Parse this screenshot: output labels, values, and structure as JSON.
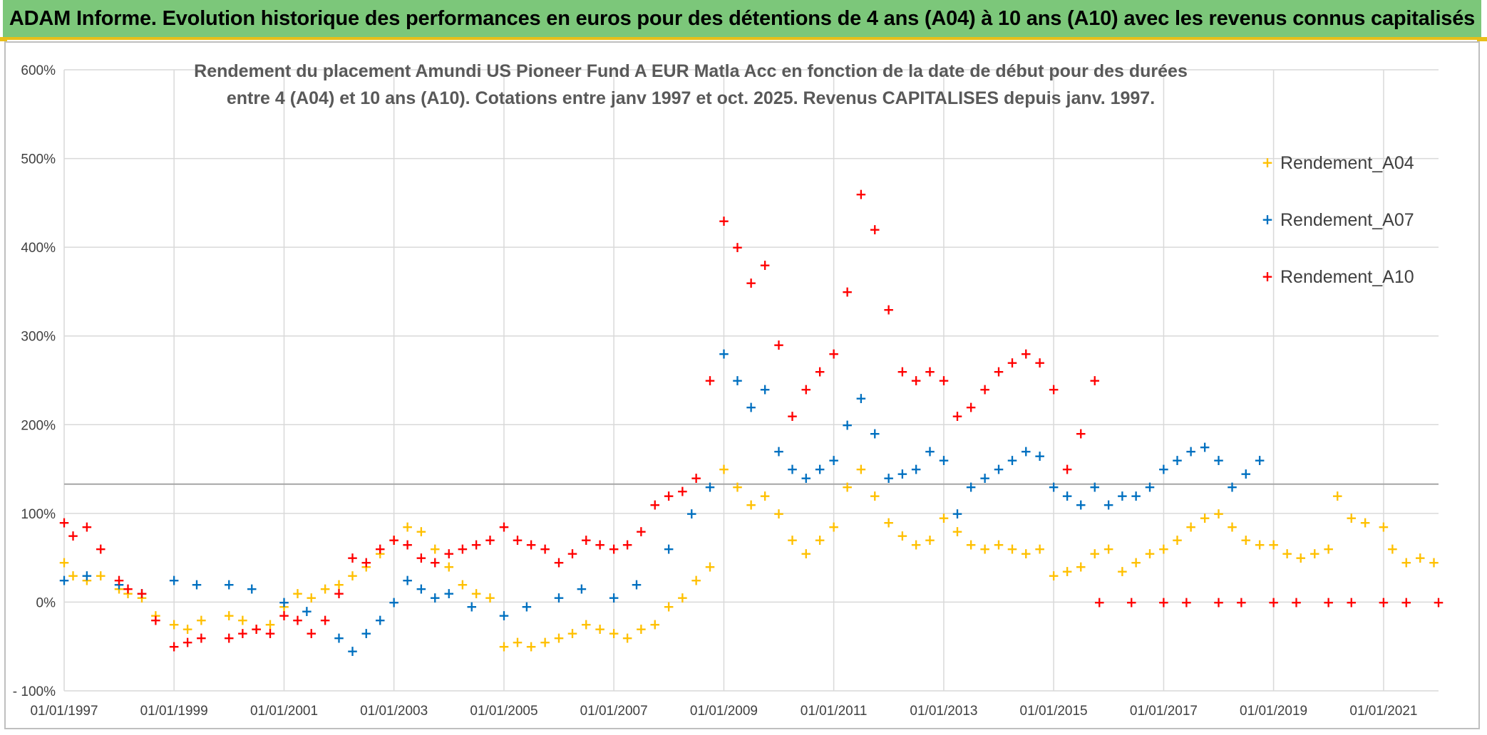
{
  "header": {
    "title": "ADAM Informe. Evolution historique des performances en euros pour des détentions de 4 ans (A04) à 10 ans (A10) avec les revenus connus capitalisés"
  },
  "colors": {
    "header_bg": "#7cc77a",
    "header_border": "#e8bf1a",
    "A04": "#ffc000",
    "A07": "#0070c0",
    "A10": "#ff0000",
    "grid": "#d9d9d9",
    "ref_line": "#a6a6a6"
  },
  "chart_data": {
    "type": "scatter",
    "title_lines": [
      "Rendement du placement Amundi US Pioneer Fund A EUR Matla Acc en fonction de la date de début pour des durées",
      "entre 4 (A04) et 10 ans (A10). Cotations entre janv 1997 et oct. 2025. Revenus CAPITALISES depuis janv. 1997."
    ],
    "x_axis": {
      "type": "date",
      "range": [
        "1997-01-01",
        "2022-01-01"
      ],
      "tick_labels": [
        "01/01/1997",
        "01/01/1999",
        "01/01/2001",
        "01/01/2003",
        "01/01/2005",
        "01/01/2007",
        "01/01/2009",
        "01/01/2011",
        "01/01/2013",
        "01/01/2015",
        "01/01/2017",
        "01/01/2019",
        "01/01/2021"
      ]
    },
    "y_axis": {
      "unit": "%",
      "range": [
        -100,
        600
      ],
      "tick_labels": [
        "- 100%",
        "0%",
        "100%",
        "200%",
        "300%",
        "400%",
        "500%",
        "600%"
      ]
    },
    "grid": true,
    "reference_line_value": 133,
    "legend_position": "top-right",
    "marker": "+",
    "series": [
      {
        "name": "Rendement_A04",
        "color": "#ffc000",
        "points": [
          [
            "1997-01-01",
            45
          ],
          [
            "1997-03-01",
            30
          ],
          [
            "1997-06-01",
            25
          ],
          [
            "1997-09-01",
            30
          ],
          [
            "1998-01-01",
            15
          ],
          [
            "1998-03-01",
            10
          ],
          [
            "1998-06-01",
            5
          ],
          [
            "1998-09-01",
            -15
          ],
          [
            "1999-01-01",
            -25
          ],
          [
            "1999-04-01",
            -30
          ],
          [
            "1999-07-01",
            -20
          ],
          [
            "2000-01-01",
            -15
          ],
          [
            "2000-04-01",
            -20
          ],
          [
            "2000-07-01",
            -30
          ],
          [
            "2000-10-01",
            -25
          ],
          [
            "2001-01-01",
            -5
          ],
          [
            "2001-04-01",
            10
          ],
          [
            "2001-07-01",
            5
          ],
          [
            "2001-10-01",
            15
          ],
          [
            "2002-01-01",
            20
          ],
          [
            "2002-04-01",
            30
          ],
          [
            "2002-07-01",
            40
          ],
          [
            "2002-10-01",
            55
          ],
          [
            "2003-01-01",
            70
          ],
          [
            "2003-04-01",
            85
          ],
          [
            "2003-07-01",
            80
          ],
          [
            "2003-10-01",
            60
          ],
          [
            "2004-01-01",
            40
          ],
          [
            "2004-04-01",
            20
          ],
          [
            "2004-07-01",
            10
          ],
          [
            "2004-10-01",
            5
          ],
          [
            "2005-01-01",
            -50
          ],
          [
            "2005-04-01",
            -45
          ],
          [
            "2005-07-01",
            -50
          ],
          [
            "2005-10-01",
            -45
          ],
          [
            "2006-01-01",
            -40
          ],
          [
            "2006-04-01",
            -35
          ],
          [
            "2006-07-01",
            -25
          ],
          [
            "2006-10-01",
            -30
          ],
          [
            "2007-01-01",
            -35
          ],
          [
            "2007-04-01",
            -40
          ],
          [
            "2007-07-01",
            -30
          ],
          [
            "2007-10-01",
            -25
          ],
          [
            "2008-01-01",
            -5
          ],
          [
            "2008-04-01",
            5
          ],
          [
            "2008-07-01",
            25
          ],
          [
            "2008-10-01",
            40
          ],
          [
            "2009-01-01",
            150
          ],
          [
            "2009-04-01",
            130
          ],
          [
            "2009-07-01",
            110
          ],
          [
            "2009-10-01",
            120
          ],
          [
            "2010-01-01",
            100
          ],
          [
            "2010-04-01",
            70
          ],
          [
            "2010-07-01",
            55
          ],
          [
            "2010-10-01",
            70
          ],
          [
            "2011-01-01",
            85
          ],
          [
            "2011-04-01",
            130
          ],
          [
            "2011-07-01",
            150
          ],
          [
            "2011-10-01",
            120
          ],
          [
            "2012-01-01",
            90
          ],
          [
            "2012-04-01",
            75
          ],
          [
            "2012-07-01",
            65
          ],
          [
            "2012-10-01",
            70
          ],
          [
            "2013-01-01",
            95
          ],
          [
            "2013-04-01",
            80
          ],
          [
            "2013-07-01",
            65
          ],
          [
            "2013-10-01",
            60
          ],
          [
            "2014-01-01",
            65
          ],
          [
            "2014-04-01",
            60
          ],
          [
            "2014-07-01",
            55
          ],
          [
            "2014-10-01",
            60
          ],
          [
            "2015-01-01",
            30
          ],
          [
            "2015-04-01",
            35
          ],
          [
            "2015-07-01",
            40
          ],
          [
            "2015-10-01",
            55
          ],
          [
            "2016-01-01",
            60
          ],
          [
            "2016-04-01",
            35
          ],
          [
            "2016-07-01",
            45
          ],
          [
            "2016-10-01",
            55
          ],
          [
            "2017-01-01",
            60
          ],
          [
            "2017-04-01",
            70
          ],
          [
            "2017-07-01",
            85
          ],
          [
            "2017-10-01",
            95
          ],
          [
            "2018-01-01",
            100
          ],
          [
            "2018-04-01",
            85
          ],
          [
            "2018-07-01",
            70
          ],
          [
            "2018-10-01",
            65
          ],
          [
            "2019-01-01",
            65
          ],
          [
            "2019-04-01",
            55
          ],
          [
            "2019-07-01",
            50
          ],
          [
            "2019-10-01",
            55
          ],
          [
            "2020-01-01",
            60
          ],
          [
            "2020-03-01",
            120
          ],
          [
            "2020-06-01",
            95
          ],
          [
            "2020-09-01",
            90
          ],
          [
            "2021-01-01",
            85
          ],
          [
            "2021-03-01",
            60
          ],
          [
            "2021-06-01",
            45
          ],
          [
            "2021-09-01",
            50
          ],
          [
            "2021-12-01",
            45
          ]
        ]
      },
      {
        "name": "Rendement_A07",
        "color": "#0070c0",
        "points": [
          [
            "1997-01-01",
            25
          ],
          [
            "1997-06-01",
            30
          ],
          [
            "1998-01-01",
            20
          ],
          [
            "1998-06-01",
            10
          ],
          [
            "1999-01-01",
            25
          ],
          [
            "1999-06-01",
            20
          ],
          [
            "2000-01-01",
            20
          ],
          [
            "2000-06-01",
            15
          ],
          [
            "2001-01-01",
            0
          ],
          [
            "2001-06-01",
            -10
          ],
          [
            "2002-01-01",
            -40
          ],
          [
            "2002-04-01",
            -55
          ],
          [
            "2002-07-01",
            -35
          ],
          [
            "2002-10-01",
            -20
          ],
          [
            "2003-01-01",
            0
          ],
          [
            "2003-04-01",
            25
          ],
          [
            "2003-07-01",
            15
          ],
          [
            "2003-10-01",
            5
          ],
          [
            "2004-01-01",
            10
          ],
          [
            "2004-06-01",
            -5
          ],
          [
            "2005-01-01",
            -15
          ],
          [
            "2005-06-01",
            -5
          ],
          [
            "2006-01-01",
            5
          ],
          [
            "2006-06-01",
            15
          ],
          [
            "2007-01-01",
            5
          ],
          [
            "2007-06-01",
            20
          ],
          [
            "2008-01-01",
            60
          ],
          [
            "2008-06-01",
            100
          ],
          [
            "2008-10-01",
            130
          ],
          [
            "2009-01-01",
            280
          ],
          [
            "2009-04-01",
            250
          ],
          [
            "2009-07-01",
            220
          ],
          [
            "2009-10-01",
            240
          ],
          [
            "2010-01-01",
            170
          ],
          [
            "2010-04-01",
            150
          ],
          [
            "2010-07-01",
            140
          ],
          [
            "2010-10-01",
            150
          ],
          [
            "2011-01-01",
            160
          ],
          [
            "2011-04-01",
            200
          ],
          [
            "2011-07-01",
            230
          ],
          [
            "2011-10-01",
            190
          ],
          [
            "2012-01-01",
            140
          ],
          [
            "2012-04-01",
            145
          ],
          [
            "2012-07-01",
            150
          ],
          [
            "2012-10-01",
            170
          ],
          [
            "2013-01-01",
            160
          ],
          [
            "2013-04-01",
            100
          ],
          [
            "2013-07-01",
            130
          ],
          [
            "2013-10-01",
            140
          ],
          [
            "2014-01-01",
            150
          ],
          [
            "2014-04-01",
            160
          ],
          [
            "2014-07-01",
            170
          ],
          [
            "2014-10-01",
            165
          ],
          [
            "2015-01-01",
            130
          ],
          [
            "2015-04-01",
            120
          ],
          [
            "2015-07-01",
            110
          ],
          [
            "2015-10-01",
            130
          ],
          [
            "2016-01-01",
            110
          ],
          [
            "2016-04-01",
            120
          ],
          [
            "2016-07-01",
            120
          ],
          [
            "2016-10-01",
            130
          ],
          [
            "2017-01-01",
            150
          ],
          [
            "2017-04-01",
            160
          ],
          [
            "2017-07-01",
            170
          ],
          [
            "2017-10-01",
            175
          ],
          [
            "2018-01-01",
            160
          ],
          [
            "2018-04-01",
            130
          ],
          [
            "2018-07-01",
            145
          ],
          [
            "2018-10-01",
            160
          ]
        ]
      },
      {
        "name": "Rendement_A10",
        "color": "#ff0000",
        "points": [
          [
            "1997-01-01",
            90
          ],
          [
            "1997-03-01",
            75
          ],
          [
            "1997-06-01",
            85
          ],
          [
            "1997-09-01",
            60
          ],
          [
            "1998-01-01",
            25
          ],
          [
            "1998-03-01",
            15
          ],
          [
            "1998-06-01",
            10
          ],
          [
            "1998-09-01",
            -20
          ],
          [
            "1999-01-01",
            -50
          ],
          [
            "1999-04-01",
            -45
          ],
          [
            "1999-07-01",
            -40
          ],
          [
            "2000-01-01",
            -40
          ],
          [
            "2000-04-01",
            -35
          ],
          [
            "2000-07-01",
            -30
          ],
          [
            "2000-10-01",
            -35
          ],
          [
            "2001-01-01",
            -15
          ],
          [
            "2001-04-01",
            -20
          ],
          [
            "2001-07-01",
            -35
          ],
          [
            "2001-10-01",
            -20
          ],
          [
            "2002-01-01",
            10
          ],
          [
            "2002-04-01",
            50
          ],
          [
            "2002-07-01",
            45
          ],
          [
            "2002-10-01",
            60
          ],
          [
            "2003-01-01",
            70
          ],
          [
            "2003-04-01",
            65
          ],
          [
            "2003-07-01",
            50
          ],
          [
            "2003-10-01",
            45
          ],
          [
            "2004-01-01",
            55
          ],
          [
            "2004-04-01",
            60
          ],
          [
            "2004-07-01",
            65
          ],
          [
            "2004-10-01",
            70
          ],
          [
            "2005-01-01",
            85
          ],
          [
            "2005-04-01",
            70
          ],
          [
            "2005-07-01",
            65
          ],
          [
            "2005-10-01",
            60
          ],
          [
            "2006-01-01",
            45
          ],
          [
            "2006-04-01",
            55
          ],
          [
            "2006-07-01",
            70
          ],
          [
            "2006-10-01",
            65
          ],
          [
            "2007-01-01",
            60
          ],
          [
            "2007-04-01",
            65
          ],
          [
            "2007-07-01",
            80
          ],
          [
            "2007-10-01",
            110
          ],
          [
            "2008-01-01",
            120
          ],
          [
            "2008-04-01",
            125
          ],
          [
            "2008-07-01",
            140
          ],
          [
            "2008-10-01",
            250
          ],
          [
            "2009-01-01",
            430
          ],
          [
            "2009-04-01",
            400
          ],
          [
            "2009-07-01",
            360
          ],
          [
            "2009-10-01",
            380
          ],
          [
            "2010-01-01",
            290
          ],
          [
            "2010-04-01",
            210
          ],
          [
            "2010-07-01",
            240
          ],
          [
            "2010-10-01",
            260
          ],
          [
            "2011-01-01",
            280
          ],
          [
            "2011-04-01",
            350
          ],
          [
            "2011-07-01",
            460
          ],
          [
            "2011-10-01",
            420
          ],
          [
            "2012-01-01",
            330
          ],
          [
            "2012-04-01",
            260
          ],
          [
            "2012-07-01",
            250
          ],
          [
            "2012-10-01",
            260
          ],
          [
            "2013-01-01",
            250
          ],
          [
            "2013-04-01",
            210
          ],
          [
            "2013-07-01",
            220
          ],
          [
            "2013-10-01",
            240
          ],
          [
            "2014-01-01",
            260
          ],
          [
            "2014-04-01",
            270
          ],
          [
            "2014-07-01",
            280
          ],
          [
            "2014-10-01",
            270
          ],
          [
            "2015-01-01",
            240
          ],
          [
            "2015-04-01",
            150
          ],
          [
            "2015-07-01",
            190
          ],
          [
            "2015-10-01",
            250
          ],
          [
            "2015-11-01",
            0
          ],
          [
            "2016-06-01",
            0
          ],
          [
            "2017-01-01",
            0
          ],
          [
            "2017-06-01",
            0
          ],
          [
            "2018-01-01",
            0
          ],
          [
            "2018-06-01",
            0
          ],
          [
            "2019-01-01",
            0
          ],
          [
            "2019-06-01",
            0
          ],
          [
            "2020-01-01",
            0
          ],
          [
            "2020-06-01",
            0
          ],
          [
            "2021-01-01",
            0
          ],
          [
            "2021-06-01",
            0
          ],
          [
            "2022-01-01",
            0
          ]
        ]
      }
    ]
  }
}
